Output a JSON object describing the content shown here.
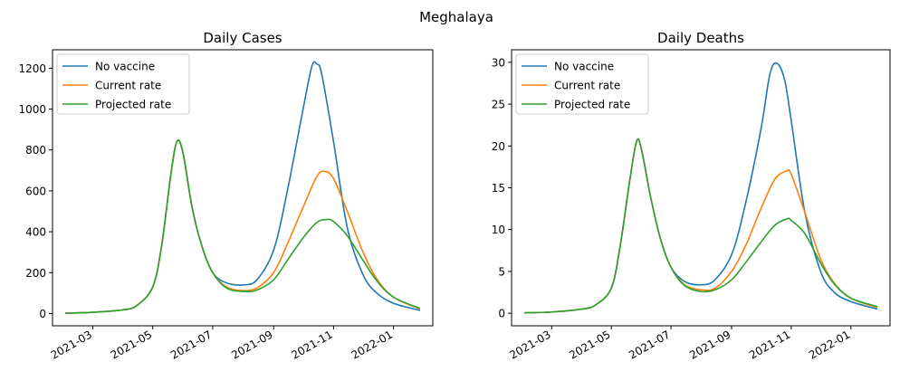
{
  "figure": {
    "title": "Meghalaya"
  },
  "colors": {
    "No vaccine": "#1f77b4",
    "Current rate": "#ff7f0e",
    "Projected rate": "#2ca02c"
  },
  "chart_data": [
    {
      "type": "line",
      "title": "Daily Cases",
      "xlabel": "",
      "ylabel": "",
      "x_range": [
        "2021-01-19",
        "2022-02-10"
      ],
      "ylim": [
        -60,
        1290
      ],
      "x_ticks": [
        "2021-03",
        "2021-05",
        "2021-07",
        "2021-09",
        "2021-11",
        "2022-01"
      ],
      "y_ticks": [
        0,
        200,
        400,
        600,
        800,
        1000,
        1200
      ],
      "legend": "top-left",
      "grid": false,
      "series": [
        {
          "name": "No vaccine",
          "x": [
            "2021-02-01",
            "2021-03-01",
            "2021-04-01",
            "2021-04-15",
            "2021-05-01",
            "2021-05-10",
            "2021-05-20",
            "2021-05-26",
            "2021-06-01",
            "2021-06-10",
            "2021-06-20",
            "2021-07-01",
            "2021-07-15",
            "2021-08-01",
            "2021-08-15",
            "2021-09-01",
            "2021-09-15",
            "2021-10-01",
            "2021-10-10",
            "2021-10-15",
            "2021-10-20",
            "2021-11-01",
            "2021-11-15",
            "2021-12-01",
            "2021-12-15",
            "2022-01-01",
            "2022-01-28"
          ],
          "values": [
            2,
            6,
            18,
            40,
            130,
            330,
            700,
            845,
            780,
            520,
            330,
            200,
            150,
            140,
            165,
            310,
            600,
            1000,
            1210,
            1220,
            1170,
            840,
            420,
            190,
            100,
            50,
            15
          ]
        },
        {
          "name": "Current rate",
          "x": [
            "2021-02-01",
            "2021-03-01",
            "2021-04-01",
            "2021-04-15",
            "2021-05-01",
            "2021-05-10",
            "2021-05-20",
            "2021-05-26",
            "2021-06-01",
            "2021-06-10",
            "2021-06-20",
            "2021-07-01",
            "2021-07-15",
            "2021-08-01",
            "2021-08-15",
            "2021-09-01",
            "2021-09-15",
            "2021-10-01",
            "2021-10-15",
            "2021-10-23",
            "2021-11-01",
            "2021-11-15",
            "2021-12-01",
            "2021-12-15",
            "2022-01-01",
            "2022-01-28"
          ],
          "values": [
            2,
            6,
            18,
            40,
            130,
            330,
            700,
            845,
            780,
            520,
            330,
            200,
            130,
            112,
            125,
            200,
            340,
            520,
            670,
            695,
            660,
            500,
            300,
            170,
            80,
            22
          ]
        },
        {
          "name": "Projected rate",
          "x": [
            "2021-02-01",
            "2021-03-01",
            "2021-04-01",
            "2021-04-15",
            "2021-05-01",
            "2021-05-10",
            "2021-05-20",
            "2021-05-26",
            "2021-06-01",
            "2021-06-10",
            "2021-06-20",
            "2021-07-01",
            "2021-07-15",
            "2021-08-01",
            "2021-08-15",
            "2021-09-01",
            "2021-09-15",
            "2021-10-01",
            "2021-10-15",
            "2021-10-25",
            "2021-11-01",
            "2021-11-15",
            "2021-12-01",
            "2021-12-15",
            "2022-01-01",
            "2022-01-28"
          ],
          "values": [
            2,
            6,
            18,
            40,
            130,
            330,
            700,
            845,
            780,
            520,
            330,
            200,
            125,
            108,
            115,
            165,
            260,
            370,
            445,
            460,
            450,
            380,
            260,
            160,
            80,
            25
          ]
        }
      ]
    },
    {
      "type": "line",
      "title": "Daily Deaths",
      "xlabel": "",
      "ylabel": "",
      "x_range": [
        "2021-01-19",
        "2022-02-10"
      ],
      "ylim": [
        -1.5,
        31.5
      ],
      "x_ticks": [
        "2021-03",
        "2021-05",
        "2021-07",
        "2021-09",
        "2021-11",
        "2022-01"
      ],
      "y_ticks": [
        0,
        5,
        10,
        15,
        20,
        25,
        30
      ],
      "legend": "top-left",
      "grid": false,
      "series": [
        {
          "name": "No vaccine",
          "x": [
            "2021-02-01",
            "2021-03-01",
            "2021-04-01",
            "2021-04-15",
            "2021-05-01",
            "2021-05-10",
            "2021-05-20",
            "2021-05-27",
            "2021-06-01",
            "2021-06-10",
            "2021-06-20",
            "2021-07-01",
            "2021-07-15",
            "2021-08-01",
            "2021-08-15",
            "2021-09-01",
            "2021-09-15",
            "2021-10-01",
            "2021-10-10",
            "2021-10-17",
            "2021-10-25",
            "2021-11-01",
            "2021-11-15",
            "2021-12-01",
            "2021-12-15",
            "2022-01-01",
            "2022-01-28"
          ],
          "values": [
            0.05,
            0.15,
            0.5,
            1,
            3,
            8,
            16,
            20.6,
            19.5,
            14,
            9,
            5.5,
            3.8,
            3.4,
            4,
            7,
            13,
            22,
            28.5,
            29.9,
            28,
            23,
            12,
            5,
            2.5,
            1.4,
            0.5
          ]
        },
        {
          "name": "Current rate",
          "x": [
            "2021-02-01",
            "2021-03-01",
            "2021-04-01",
            "2021-04-15",
            "2021-05-01",
            "2021-05-10",
            "2021-05-20",
            "2021-05-27",
            "2021-06-01",
            "2021-06-10",
            "2021-06-20",
            "2021-07-01",
            "2021-07-15",
            "2021-08-01",
            "2021-08-15",
            "2021-09-01",
            "2021-09-15",
            "2021-10-01",
            "2021-10-15",
            "2021-10-27",
            "2021-11-01",
            "2021-11-15",
            "2021-12-01",
            "2021-12-15",
            "2022-01-01",
            "2022-01-28"
          ],
          "values": [
            0.05,
            0.15,
            0.5,
            1,
            3,
            8,
            16,
            20.6,
            19.5,
            14,
            9,
            5.5,
            3.4,
            2.8,
            3,
            5,
            8,
            12.5,
            16,
            17,
            16.6,
            12,
            6.5,
            3.6,
            1.8,
            0.7
          ]
        },
        {
          "name": "Projected rate",
          "x": [
            "2021-02-01",
            "2021-03-01",
            "2021-04-01",
            "2021-04-15",
            "2021-05-01",
            "2021-05-10",
            "2021-05-20",
            "2021-05-27",
            "2021-06-01",
            "2021-06-10",
            "2021-06-20",
            "2021-07-01",
            "2021-07-15",
            "2021-08-01",
            "2021-08-15",
            "2021-09-01",
            "2021-09-15",
            "2021-10-01",
            "2021-10-15",
            "2021-10-28",
            "2021-11-01",
            "2021-11-15",
            "2021-12-01",
            "2021-12-15",
            "2022-01-01",
            "2022-01-28"
          ],
          "values": [
            0.05,
            0.15,
            0.5,
            1,
            3,
            8,
            16,
            20.6,
            19.5,
            14,
            9,
            5.5,
            3.3,
            2.6,
            2.8,
            4,
            6,
            8.5,
            10.5,
            11.3,
            11.1,
            9.5,
            6,
            3.5,
            1.8,
            0.8
          ]
        }
      ]
    }
  ]
}
